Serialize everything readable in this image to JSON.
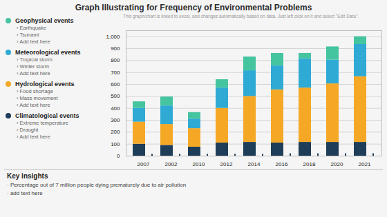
{
  "chart_data": {
    "type": "bar",
    "stacked": true,
    "title": "Graph Illustrating for Frequency of Environmental Problems",
    "subtitle": "This graph/chart is linked to excel, and changes automatically based on data. Just left click on it and select \"Edit Data\".",
    "categories": [
      "2007",
      "2002",
      "2010",
      "2012",
      "2014",
      "2016",
      "2018",
      "2020",
      "2021"
    ],
    "series": [
      {
        "name": "Climatological events",
        "color": "#1e3d58",
        "values": [
          100,
          90,
          75,
          110,
          115,
          110,
          115,
          115,
          115
        ],
        "sub": [
          "›  Extreme temperature",
          "›  Draught",
          "›  Add text here"
        ]
      },
      {
        "name": "Hydrological events",
        "color": "#f5a825",
        "values": [
          185,
          175,
          155,
          290,
          385,
          445,
          455,
          490,
          550
        ],
        "sub": [
          "›  Food shortage",
          "›  Mass movement",
          "›  Add text here"
        ]
      },
      {
        "name": "Meteorological events",
        "color": "#2eaad4",
        "values": [
          115,
          155,
          80,
          170,
          215,
          200,
          245,
          200,
          270
        ],
        "sub": [
          "›  Tropical storm",
          "›  Winter storm",
          "›  Add text here"
        ]
      },
      {
        "name": "Geophysical events",
        "color": "#45c4a0",
        "values": [
          55,
          75,
          55,
          70,
          115,
          105,
          45,
          110,
          65
        ],
        "sub": [
          "›  Earthquake",
          "›  Tsunami",
          "›  Add text here"
        ]
      }
    ],
    "side_bar": {
      "color": "#1e3d58",
      "values": [
        15,
        15,
        15,
        15,
        15,
        20,
        20,
        20,
        20
      ]
    },
    "notes_title": "Key insights",
    "notes": [
      "· Percentage out of 7 million people dying prematurely due to air pollution",
      "· add text here"
    ],
    "ylim": [
      0,
      1050
    ],
    "yticks": [
      0,
      100,
      200,
      300,
      400,
      500,
      600,
      700,
      800,
      900,
      1000
    ],
    "grid": true
  }
}
